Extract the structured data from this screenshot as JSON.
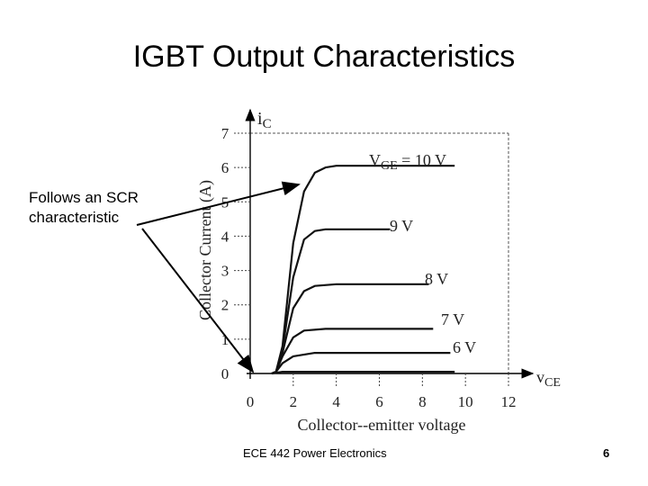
{
  "slide": {
    "title": "IGBT Output Characteristics",
    "annotation_line1": "Follows an SCR",
    "annotation_line2": "characteristic",
    "footer": "ECE 442 Power Electronics",
    "page_number": "6"
  },
  "chart_data": {
    "type": "line",
    "title": "",
    "xlabel": "Collector--emitter voltage",
    "ylabel": "Collector Current (A)",
    "x_axis_symbol": "v",
    "x_axis_symbol_sub": "CE",
    "y_axis_symbol": "i",
    "y_axis_symbol_sub": "C",
    "xlim": [
      0,
      12
    ],
    "ylim": [
      0,
      7
    ],
    "x_ticks": [
      "0",
      "2",
      "4",
      "6",
      "8",
      "10",
      "12"
    ],
    "y_ticks": [
      "0",
      "1",
      "2",
      "3",
      "4",
      "5",
      "6",
      "7"
    ],
    "grid": false,
    "series": [
      {
        "name": "V",
        "name_sub": "GE",
        "name_suffix": " = 10 V",
        "saturation": 6.05,
        "x": [
          1.0,
          1.2,
          1.5,
          2.0,
          2.5,
          3.0,
          3.5,
          4.0,
          9.5
        ],
        "y": [
          0.0,
          0.05,
          0.8,
          3.8,
          5.3,
          5.85,
          6.0,
          6.05,
          6.05
        ]
      },
      {
        "name": "9 V",
        "saturation": 4.2,
        "x": [
          1.0,
          1.2,
          1.5,
          2.0,
          2.5,
          3.0,
          3.5,
          6.5
        ],
        "y": [
          0.0,
          0.05,
          0.7,
          2.8,
          3.9,
          4.15,
          4.2,
          4.2
        ]
      },
      {
        "name": "8 V",
        "saturation": 2.6,
        "x": [
          1.0,
          1.2,
          1.5,
          2.0,
          2.5,
          3.0,
          4.0,
          8.3
        ],
        "y": [
          0.0,
          0.05,
          0.6,
          1.9,
          2.4,
          2.55,
          2.6,
          2.6
        ]
      },
      {
        "name": "7 V",
        "saturation": 1.3,
        "x": [
          1.0,
          1.2,
          1.5,
          2.0,
          2.5,
          3.5,
          8.5
        ],
        "y": [
          0.0,
          0.05,
          0.5,
          1.05,
          1.25,
          1.3,
          1.3
        ]
      },
      {
        "name": "6 V",
        "saturation": 0.6,
        "x": [
          1.0,
          1.2,
          1.5,
          2.0,
          3.0,
          9.3
        ],
        "y": [
          0.0,
          0.05,
          0.3,
          0.5,
          0.6,
          0.6
        ]
      },
      {
        "name": "",
        "saturation": 0.05,
        "x": [
          1.0,
          1.2,
          1.5,
          3.0,
          9.5
        ],
        "y": [
          0.0,
          0.02,
          0.05,
          0.05,
          0.05
        ]
      }
    ]
  }
}
